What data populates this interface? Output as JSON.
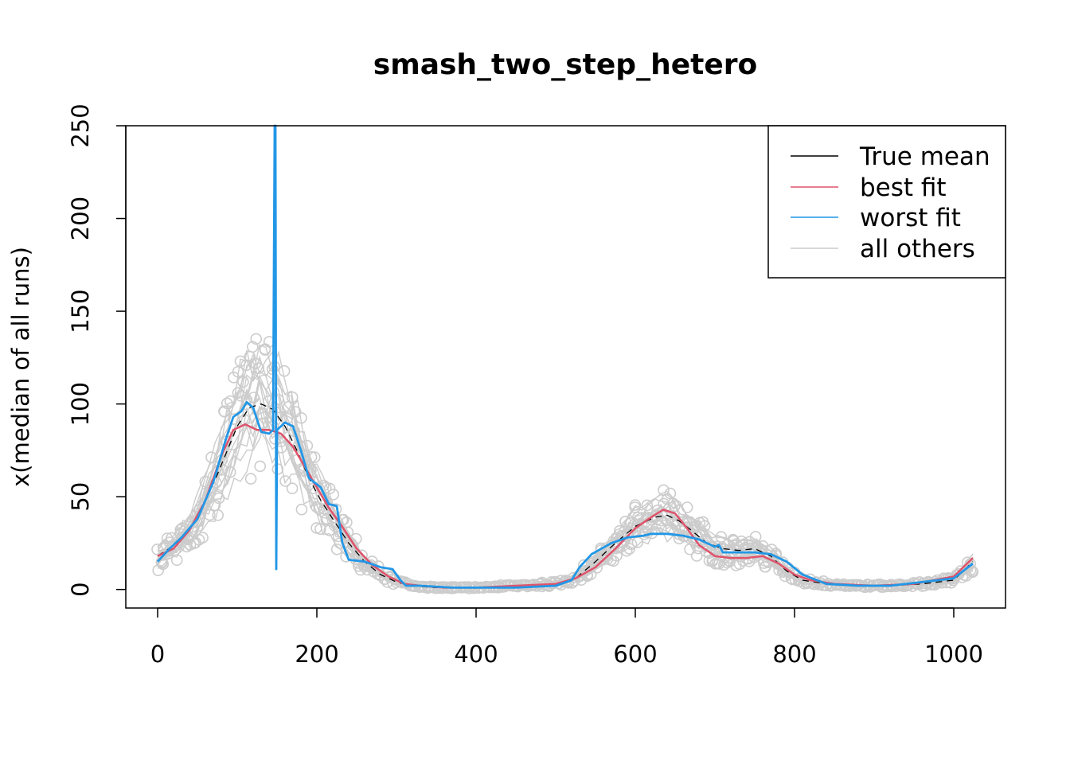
{
  "chart_data": {
    "type": "line",
    "title": "smash_two_step_hetero",
    "xlabel": "",
    "ylabel": "x(median of all runs)",
    "xlim": [
      -40,
      1065
    ],
    "ylim": [
      -10,
      250
    ],
    "xticks": [
      0,
      200,
      400,
      600,
      800,
      1000
    ],
    "yticks": [
      0,
      50,
      100,
      150,
      200,
      250
    ],
    "grid": false,
    "legend": {
      "placement": "top-right",
      "entries": [
        "True mean",
        "best fit",
        "worst fit",
        "all others"
      ]
    },
    "colors": {
      "true_mean": "#000000",
      "best_fit": "#DF536B",
      "worst_fit": "#2297E6",
      "all_others": "#CCCCCC"
    },
    "series": [
      {
        "name": "True mean",
        "x": [
          0,
          25,
          50,
          75,
          100,
          115,
          130,
          145,
          160,
          175,
          190,
          205,
          220,
          240,
          260,
          280,
          300,
          320,
          350,
          400,
          450,
          500,
          525,
          550,
          575,
          600,
          625,
          640,
          655,
          670,
          690,
          710,
          730,
          750,
          770,
          790,
          810,
          840,
          880,
          920,
          960,
          1000,
          1024
        ],
        "y": [
          18,
          25,
          38,
          62,
          88,
          98,
          100,
          97,
          88,
          75,
          60,
          48,
          38,
          25,
          15,
          8,
          4,
          2,
          1,
          1,
          2,
          3,
          6,
          15,
          25,
          34,
          39,
          40,
          37,
          32,
          25,
          22,
          21,
          22,
          18,
          10,
          5,
          3,
          2,
          2,
          3,
          5,
          15
        ]
      },
      {
        "name": "best fit",
        "x": [
          0,
          20,
          40,
          60,
          80,
          95,
          110,
          125,
          140,
          155,
          170,
          185,
          200,
          215,
          230,
          250,
          270,
          290,
          310,
          330,
          360,
          400,
          450,
          500,
          525,
          550,
          575,
          600,
          620,
          635,
          650,
          665,
          680,
          700,
          720,
          740,
          760,
          780,
          800,
          820,
          850,
          900,
          950,
          1000,
          1024
        ],
        "y": [
          18,
          22,
          32,
          48,
          72,
          86,
          89,
          86,
          86,
          84,
          77,
          66,
          55,
          44,
          35,
          22,
          13,
          7,
          3,
          2,
          1,
          1,
          2,
          3,
          6,
          12,
          22,
          33,
          39,
          43,
          41,
          33,
          24,
          18,
          17,
          17,
          18,
          14,
          8,
          5,
          3,
          2,
          3,
          7,
          17
        ]
      },
      {
        "name": "worst fit",
        "x": [
          0,
          15,
          30,
          50,
          70,
          85,
          95,
          105,
          112,
          120,
          130,
          140,
          145,
          147,
          148,
          149,
          150,
          160,
          170,
          180,
          190,
          205,
          215,
          225,
          232,
          240,
          260,
          280,
          295,
          305,
          312,
          330,
          370,
          400,
          450,
          500,
          520,
          530,
          545,
          570,
          590,
          610,
          620,
          640,
          660,
          680,
          700,
          705,
          710,
          730,
          750,
          770,
          790,
          810,
          840,
          880,
          920,
          960,
          1000,
          1024
        ],
        "y": [
          15,
          22,
          28,
          38,
          58,
          80,
          93,
          96,
          101,
          98,
          85,
          84,
          86,
          250,
          250,
          11,
          86,
          90,
          88,
          75,
          60,
          55,
          46,
          45,
          25,
          16,
          15,
          12,
          11,
          5,
          2,
          2,
          1,
          1,
          1,
          2,
          5,
          12,
          19,
          25,
          28,
          29,
          30,
          30,
          29,
          27,
          23,
          24,
          20,
          20,
          20,
          19,
          15,
          8,
          3,
          2,
          2,
          4,
          6,
          14
        ]
      },
      {
        "name": "all others",
        "x": [
          0,
          25,
          50,
          75,
          100,
          115,
          130,
          145,
          160,
          175,
          190,
          205,
          220,
          240,
          260,
          280,
          300,
          320,
          350,
          400,
          450,
          500,
          525,
          550,
          575,
          600,
          625,
          640,
          655,
          670,
          690,
          710,
          730,
          750,
          770,
          790,
          810,
          840,
          880,
          920,
          960,
          1000,
          1024
        ],
        "y": [
          17,
          24,
          37,
          60,
          86,
          96,
          99,
          96,
          87,
          74,
          59,
          47,
          37,
          24,
          14,
          8,
          4,
          2,
          1,
          1,
          2,
          3,
          6,
          14,
          24,
          33,
          38,
          39,
          36,
          31,
          25,
          21,
          20,
          21,
          17,
          9,
          5,
          3,
          2,
          2,
          3,
          5,
          14
        ]
      }
    ]
  }
}
